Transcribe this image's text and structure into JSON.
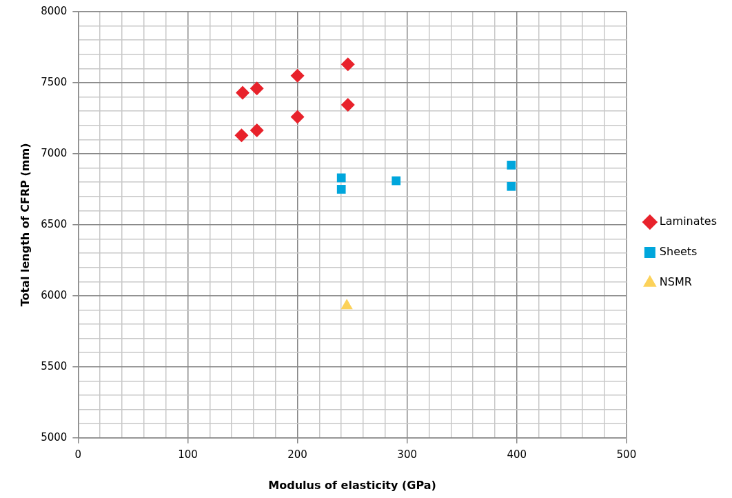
{
  "chart_data": {
    "type": "scatter",
    "xlabel": "Modulus of elasticity (GPa)",
    "ylabel": "Total length of CFRP (mm)",
    "xlim": [
      0,
      500
    ],
    "ylim": [
      5000,
      8000
    ],
    "xticks": [
      0,
      {
        "value": 20,
        "label": null
      },
      {
        "value": 40,
        "label": null
      },
      {
        "value": 60,
        "label": null
      },
      {
        "value": 80,
        "label": null
      },
      100,
      {
        "value": 120,
        "label": null
      },
      {
        "value": 140,
        "label": null
      },
      {
        "value": 160,
        "label": null
      },
      {
        "value": 180,
        "label": null
      },
      200,
      {
        "value": 220,
        "label": null
      },
      {
        "value": 240,
        "label": null
      },
      {
        "value": 260,
        "label": null
      },
      {
        "value": 280,
        "label": null
      },
      300,
      {
        "value": 320,
        "label": null
      },
      {
        "value": 340,
        "label": null
      },
      {
        "value": 360,
        "label": null
      },
      {
        "value": 380,
        "label": null
      },
      400,
      {
        "value": 420,
        "label": null
      },
      {
        "value": 440,
        "label": null
      },
      {
        "value": 460,
        "label": null
      },
      {
        "value": 480,
        "label": null
      },
      500
    ],
    "yticks": [
      5000,
      {
        "value": 5100,
        "label": null
      },
      {
        "value": 5200,
        "label": null
      },
      {
        "value": 5300,
        "label": null
      },
      {
        "value": 5400,
        "label": null
      },
      5500,
      {
        "value": 5600,
        "label": null
      },
      {
        "value": 5700,
        "label": null
      },
      {
        "value": 5800,
        "label": null
      },
      {
        "value": 5900,
        "label": null
      },
      6000,
      {
        "value": 6100,
        "label": null
      },
      {
        "value": 6200,
        "label": null
      },
      {
        "value": 6300,
        "label": null
      },
      {
        "value": 6400,
        "label": null
      },
      6500,
      {
        "value": 6600,
        "label": null
      },
      {
        "value": 6700,
        "label": null
      },
      {
        "value": 6800,
        "label": null
      },
      {
        "value": 6900,
        "label": null
      },
      7000,
      {
        "value": 7100,
        "label": null
      },
      {
        "value": 7200,
        "label": null
      },
      {
        "value": 7300,
        "label": null
      },
      {
        "value": 7400,
        "label": null
      },
      7500,
      {
        "value": 7600,
        "label": null
      },
      {
        "value": 7700,
        "label": null
      },
      {
        "value": 7800,
        "label": null
      },
      {
        "value": 7900,
        "label": null
      },
      8000
    ],
    "grid": true,
    "legend": "right",
    "series": [
      {
        "name": "Laminates",
        "color": "#e8222b",
        "marker": "diamond",
        "x": [
          150,
          163,
          200,
          246,
          246,
          200,
          163,
          149
        ],
        "values": [
          7430,
          7460,
          7550,
          7630,
          7345,
          7260,
          7165,
          7130
        ]
      },
      {
        "name": "Sheets",
        "color": "#00a6dc",
        "marker": "square",
        "x": [
          240,
          240,
          290,
          395,
          395
        ],
        "values": [
          6830,
          6750,
          6810,
          6920,
          6770
        ]
      },
      {
        "name": "NSMR",
        "color": "#fcd25a",
        "marker": "triangle",
        "x": [
          245
        ],
        "values": [
          5930
        ]
      }
    ]
  }
}
